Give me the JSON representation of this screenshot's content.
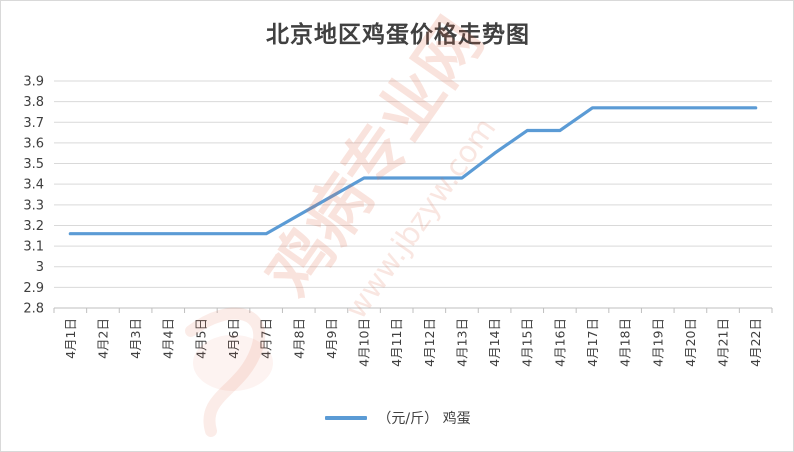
{
  "chart_data": {
    "type": "line",
    "title": "北京地区鸡蛋价格走势图",
    "categories": [
      "4月1日",
      "4月2日",
      "4月3日",
      "4月4日",
      "4月5日",
      "4月6日",
      "4月7日",
      "4月8日",
      "4月9日",
      "4月10日",
      "4月11日",
      "4月12日",
      "4月13日",
      "4月14日",
      "4月15日",
      "4月16日",
      "4月17日",
      "4月18日",
      "4月19日",
      "4月20日",
      "4月21日",
      "4月22日"
    ],
    "series": [
      {
        "name": "（元/斤） 鸡蛋",
        "color": "#5b9bd5",
        "values": [
          3.16,
          3.16,
          3.16,
          3.16,
          3.16,
          3.16,
          3.16,
          3.25,
          3.34,
          3.43,
          3.43,
          3.43,
          3.43,
          3.55,
          3.66,
          3.66,
          3.77,
          3.77,
          3.77,
          3.77,
          3.77,
          3.77
        ]
      }
    ],
    "ylim": [
      2.8,
      3.9
    ],
    "yticks": [
      "2.8",
      "2.9",
      "3",
      "3.1",
      "3.2",
      "3.3",
      "3.4",
      "3.5",
      "3.6",
      "3.7",
      "3.8",
      "3.9"
    ],
    "grid": true,
    "legend": "bottom"
  },
  "watermark": {
    "text": "鸡病专业网",
    "url": "www.jbzyw.com",
    "color": "#e06a4a"
  }
}
